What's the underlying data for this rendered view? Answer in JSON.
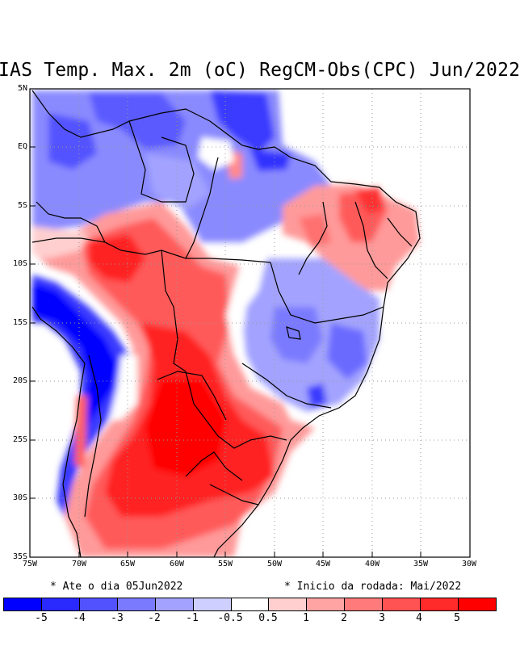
{
  "title": "IAS Temp. Max. 2m (oC) RegCM-Obs(CPC) Jun/2022",
  "map": {
    "lat_labels": [
      "5N",
      "EQ",
      "5S",
      "10S",
      "15S",
      "20S",
      "25S",
      "30S",
      "35S"
    ],
    "lon_labels": [
      "75W",
      "70W",
      "65W",
      "60W",
      "55W",
      "50W",
      "45W",
      "40W",
      "35W",
      "30W"
    ]
  },
  "notes": {
    "left": "* Ate o dia 05Jun2022",
    "right": "* Inicio da rodada: Mai/2022"
  },
  "colorbar": {
    "colors": [
      "#0000ff",
      "#2a2aff",
      "#5252ff",
      "#7a7aff",
      "#a3a3ff",
      "#cfcfff",
      "#ffffff",
      "#ffcfcf",
      "#ffa3a3",
      "#ff7a7a",
      "#ff5252",
      "#ff2a2a",
      "#ff0000"
    ],
    "labels": [
      "-5",
      "-4",
      "-3",
      "-2",
      "-1",
      "-0.5",
      "0.5",
      "1",
      "2",
      "3",
      "4",
      "5"
    ]
  }
}
